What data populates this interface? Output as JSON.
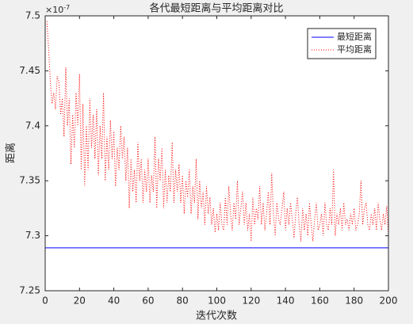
{
  "chart_data": {
    "type": "line",
    "title": "各代最短距离与平均距离对比",
    "xlabel": "迭代次数",
    "ylabel": "距离",
    "y_multiplier_base": "×10",
    "y_multiplier_exponent": "-7",
    "xlim": [
      0,
      200
    ],
    "xticks": [
      0,
      20,
      40,
      60,
      80,
      100,
      120,
      140,
      160,
      180,
      200
    ],
    "ylim": [
      7.25,
      7.5
    ],
    "yticks": [
      7.25,
      7.3,
      7.35,
      7.4,
      7.45,
      7.5
    ],
    "legend": "northeast",
    "series": [
      {
        "name": "最短距离",
        "color": "#0000ff",
        "style": "solid",
        "x": [
          0,
          200
        ],
        "values": [
          7.289,
          7.289
        ]
      },
      {
        "name": "平均距离",
        "color": "#ff0000",
        "style": "dotted",
        "x": [
          1,
          2,
          3,
          4,
          5,
          6,
          7,
          8,
          9,
          10,
          11,
          12,
          13,
          14,
          15,
          16,
          17,
          18,
          19,
          20,
          21,
          22,
          23,
          24,
          25,
          26,
          27,
          28,
          29,
          30,
          31,
          32,
          33,
          34,
          35,
          36,
          37,
          38,
          39,
          40,
          41,
          42,
          43,
          44,
          45,
          46,
          47,
          48,
          49,
          50,
          51,
          52,
          53,
          54,
          55,
          56,
          57,
          58,
          59,
          60,
          61,
          62,
          63,
          64,
          65,
          66,
          67,
          68,
          69,
          70,
          71,
          72,
          73,
          74,
          75,
          76,
          77,
          78,
          79,
          80,
          81,
          82,
          83,
          84,
          85,
          86,
          87,
          88,
          89,
          90,
          91,
          92,
          93,
          94,
          95,
          96,
          97,
          98,
          99,
          100,
          101,
          102,
          103,
          104,
          105,
          106,
          107,
          108,
          109,
          110,
          111,
          112,
          113,
          114,
          115,
          116,
          117,
          118,
          119,
          120,
          121,
          122,
          123,
          124,
          125,
          126,
          127,
          128,
          129,
          130,
          131,
          132,
          133,
          134,
          135,
          136,
          137,
          138,
          139,
          140,
          141,
          142,
          143,
          144,
          145,
          146,
          147,
          148,
          149,
          150,
          151,
          152,
          153,
          154,
          155,
          156,
          157,
          158,
          159,
          160,
          161,
          162,
          163,
          164,
          165,
          166,
          167,
          168,
          169,
          170,
          171,
          172,
          173,
          174,
          175,
          176,
          177,
          178,
          179,
          180,
          181,
          182,
          183,
          184,
          185,
          186,
          187,
          188,
          189,
          190,
          191,
          192,
          193,
          194,
          195,
          196,
          197,
          198,
          199,
          200
        ],
        "values": [
          7.495,
          7.47,
          7.44,
          7.42,
          7.43,
          7.415,
          7.445,
          7.44,
          7.41,
          7.425,
          7.39,
          7.453,
          7.4,
          7.425,
          7.365,
          7.41,
          7.38,
          7.43,
          7.4,
          7.447,
          7.36,
          7.42,
          7.345,
          7.4,
          7.36,
          7.425,
          7.38,
          7.41,
          7.37,
          7.415,
          7.355,
          7.4,
          7.37,
          7.43,
          7.35,
          7.39,
          7.36,
          7.405,
          7.37,
          7.395,
          7.345,
          7.38,
          7.36,
          7.4,
          7.37,
          7.39,
          7.35,
          7.38,
          7.325,
          7.37,
          7.34,
          7.36,
          7.33,
          7.385,
          7.35,
          7.37,
          7.33,
          7.36,
          7.34,
          7.37,
          7.33,
          7.355,
          7.34,
          7.39,
          7.325,
          7.37,
          7.35,
          7.38,
          7.325,
          7.36,
          7.33,
          7.355,
          7.34,
          7.385,
          7.33,
          7.36,
          7.34,
          7.365,
          7.33,
          7.355,
          7.32,
          7.35,
          7.335,
          7.36,
          7.32,
          7.345,
          7.33,
          7.37,
          7.315,
          7.35,
          7.325,
          7.34,
          7.31,
          7.345,
          7.32,
          7.335,
          7.31,
          7.325,
          7.303,
          7.32,
          7.305,
          7.33,
          7.31,
          7.305,
          7.335,
          7.31,
          7.345,
          7.32,
          7.305,
          7.33,
          7.315,
          7.35,
          7.31,
          7.325,
          7.34,
          7.31,
          7.33,
          7.305,
          7.32,
          7.295,
          7.335,
          7.31,
          7.325,
          7.315,
          7.345,
          7.31,
          7.33,
          7.305,
          7.32,
          7.34,
          7.31,
          7.357,
          7.32,
          7.3,
          7.33,
          7.315,
          7.31,
          7.325,
          7.34,
          7.305,
          7.325,
          7.31,
          7.33,
          7.315,
          7.298,
          7.32,
          7.335,
          7.31,
          7.295,
          7.325,
          7.305,
          7.32,
          7.3,
          7.33,
          7.31,
          7.295,
          7.315,
          7.33,
          7.305,
          7.31,
          7.32,
          7.3,
          7.33,
          7.31,
          7.305,
          7.325,
          7.31,
          7.36,
          7.3,
          7.32,
          7.31,
          7.325,
          7.305,
          7.33,
          7.31,
          7.315,
          7.305,
          7.32,
          7.31,
          7.325,
          7.305,
          7.31,
          7.32,
          7.35,
          7.31,
          7.325,
          7.33,
          7.31,
          7.305,
          7.32,
          7.31,
          7.325,
          7.305,
          7.33,
          7.315,
          7.305,
          7.32,
          7.31,
          7.327,
          7.3
        ]
      }
    ]
  }
}
